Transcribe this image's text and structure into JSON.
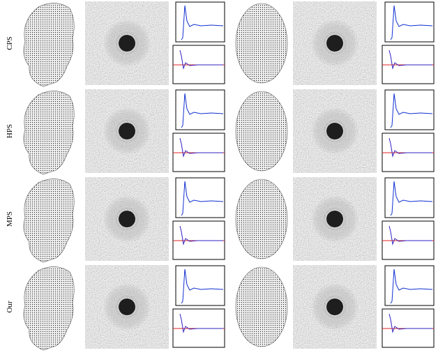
{
  "rows": [
    {
      "label": "CPS"
    },
    {
      "label": "HPS"
    },
    {
      "label": "MPS"
    },
    {
      "label": "Our"
    }
  ]
}
